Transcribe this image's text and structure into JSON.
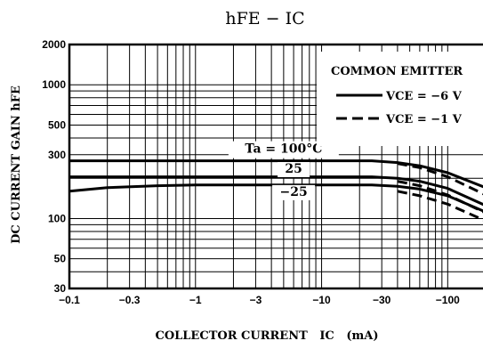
{
  "chart_data": {
    "type": "line",
    "title": "hFE − IC",
    "xlabel": "COLLECTOR CURRENT   IC   (mA)",
    "ylabel": "DC CURRENT GAIN   hFE",
    "x_scale": "log",
    "y_scale": "log",
    "xlim": [
      -0.1,
      -200
    ],
    "ylim": [
      30,
      2000
    ],
    "x_ticks": [
      -0.1,
      -0.3,
      -1,
      -3,
      -10,
      -30,
      -100
    ],
    "x_tick_labels": [
      "−0.1",
      "−0.3",
      "−1",
      "−3",
      "−10",
      "−30",
      "−100"
    ],
    "y_ticks": [
      30,
      50,
      100,
      300,
      500,
      1000,
      2000
    ],
    "y_tick_labels": [
      "30",
      "50",
      "100",
      "300",
      "500",
      "1000",
      "2000"
    ],
    "grid": true,
    "legend": {
      "title": "COMMON EMITTER",
      "placement": "top-right",
      "entries": [
        {
          "label": "VCE = −6 V",
          "style": "solid"
        },
        {
          "label": "VCE = −1 V",
          "style": "dashed"
        }
      ]
    },
    "series": [
      {
        "temp": "Ta = 100°C",
        "vce": "solid",
        "x": [
          -0.1,
          -1,
          -10,
          -25,
          -40,
          -60,
          -100,
          -200
        ],
        "y": [
          270,
          270,
          270,
          270,
          262,
          248,
          220,
          170
        ]
      },
      {
        "temp": "Ta = 100°C",
        "vce": "dashed",
        "x": [
          -40,
          -60,
          -100,
          -200
        ],
        "y": [
          258,
          240,
          205,
          150
        ]
      },
      {
        "temp": "25",
        "vce": "solid",
        "x": [
          -0.1,
          -1,
          -10,
          -25,
          -40,
          -60,
          -100,
          -200
        ],
        "y": [
          205,
          205,
          205,
          205,
          200,
          190,
          168,
          125
        ]
      },
      {
        "temp": "25",
        "vce": "dashed",
        "x": [
          -40,
          -60,
          -100,
          -200
        ],
        "y": [
          190,
          176,
          150,
          110
        ]
      },
      {
        "temp": "−25",
        "vce": "solid",
        "x": [
          -0.1,
          -0.2,
          -0.5,
          -1,
          -10,
          -25,
          -40,
          -60,
          -100,
          -200
        ],
        "y": [
          160,
          170,
          176,
          178,
          178,
          178,
          174,
          166,
          148,
          112
        ]
      },
      {
        "temp": "−25",
        "vce": "dashed",
        "x": [
          -40,
          -60,
          -100,
          -200
        ],
        "y": [
          160,
          148,
          128,
          96
        ]
      }
    ],
    "annotations": [
      {
        "text": "Ta = 100°C",
        "at_x": -5,
        "at_y": 310
      },
      {
        "text": "25",
        "at_x": -6,
        "at_y": 220
      },
      {
        "text": "−25",
        "at_x": -6,
        "at_y": 148
      }
    ]
  }
}
